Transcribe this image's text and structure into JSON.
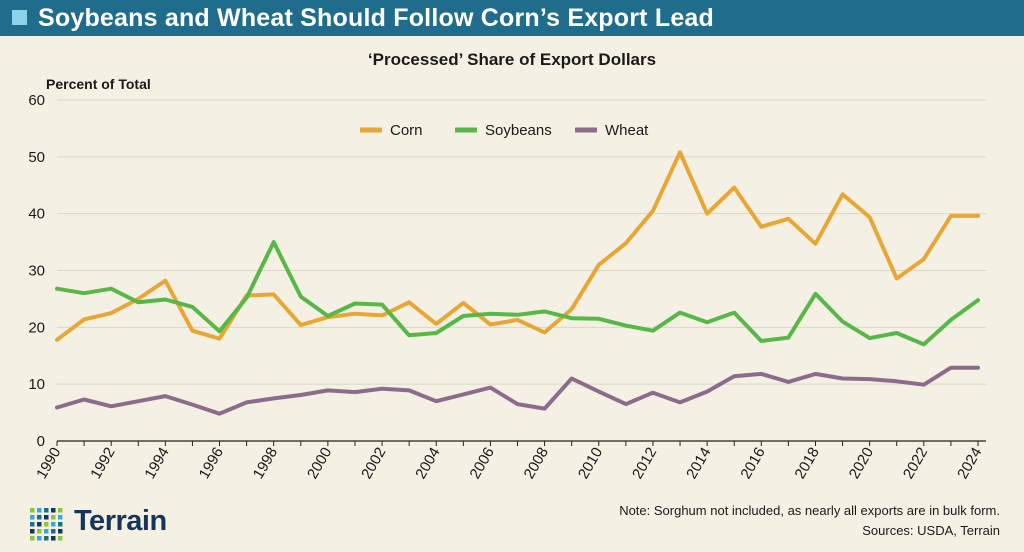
{
  "header": {
    "title": "Soybeans and Wheat Should Follow Corn’s Export Lead"
  },
  "footer": {
    "logo_text": "Terrain",
    "note": "Note: Sorghum not included, as nearly all exports are in bulk form.",
    "sources": "Sources: USDA, Terrain"
  },
  "colors": {
    "banner": "#1f6c8c",
    "corn": "#e8a634",
    "soybeans": "#57b847",
    "wheat": "#8e6a8c",
    "grid": "#d9d6c8",
    "background": "#f4f1e4"
  },
  "chart_data": {
    "type": "line",
    "title": "‘Processed’ Share of Export Dollars",
    "ylabel": "Percent of Total",
    "xlabel": "",
    "ylim": [
      0,
      60
    ],
    "yticks": [
      0,
      10,
      20,
      30,
      40,
      50,
      60
    ],
    "grid": true,
    "legend_position": "top-center",
    "x": [
      1990,
      1991,
      1992,
      1993,
      1994,
      1995,
      1996,
      1997,
      1998,
      1999,
      2000,
      2001,
      2002,
      2003,
      2004,
      2005,
      2006,
      2007,
      2008,
      2009,
      2010,
      2011,
      2012,
      2013,
      2014,
      2015,
      2016,
      2017,
      2018,
      2019,
      2020,
      2021,
      2022,
      2023,
      2024
    ],
    "xtick_labels": [
      "1990",
      "1992",
      "1994",
      "1996",
      "1998",
      "2000",
      "2002",
      "2004",
      "2006",
      "2008",
      "2010",
      "2012",
      "2014",
      "2016",
      "2018",
      "2020",
      "2022",
      "2024"
    ],
    "series": [
      {
        "name": "Corn",
        "color": "#e8a634",
        "values": [
          17.8,
          21.4,
          22.5,
          25.0,
          28.2,
          19.4,
          18.0,
          25.6,
          25.8,
          20.4,
          21.8,
          22.4,
          22.1,
          24.4,
          20.6,
          24.3,
          20.5,
          21.3,
          19.1,
          23.2,
          31.0,
          34.8,
          40.5,
          50.8,
          40.0,
          44.6,
          37.7,
          39.1,
          34.7,
          43.4,
          39.4,
          28.6,
          32.0,
          39.6,
          39.6
        ]
      },
      {
        "name": "Soybeans",
        "color": "#57b847",
        "values": [
          26.8,
          26.0,
          26.8,
          24.4,
          24.9,
          23.6,
          19.3,
          25.2,
          35.0,
          25.4,
          22.0,
          24.2,
          24.0,
          18.6,
          19.0,
          22.0,
          22.4,
          22.2,
          22.8,
          21.6,
          21.5,
          20.3,
          19.4,
          22.6,
          20.9,
          22.6,
          17.6,
          18.2,
          25.9,
          21.0,
          18.1,
          19.0,
          17.0,
          21.3,
          24.8
        ]
      },
      {
        "name": "Wheat",
        "color": "#8e6a8c",
        "values": [
          5.9,
          7.3,
          6.1,
          7.0,
          7.9,
          6.4,
          4.8,
          6.8,
          7.5,
          8.1,
          8.9,
          8.6,
          9.2,
          8.9,
          7.0,
          8.2,
          9.4,
          6.5,
          5.7,
          11.0,
          8.7,
          6.5,
          8.5,
          6.8,
          8.7,
          11.4,
          11.8,
          10.4,
          11.8,
          11.0,
          10.9,
          10.5,
          9.9,
          12.9,
          12.9
        ]
      }
    ]
  }
}
